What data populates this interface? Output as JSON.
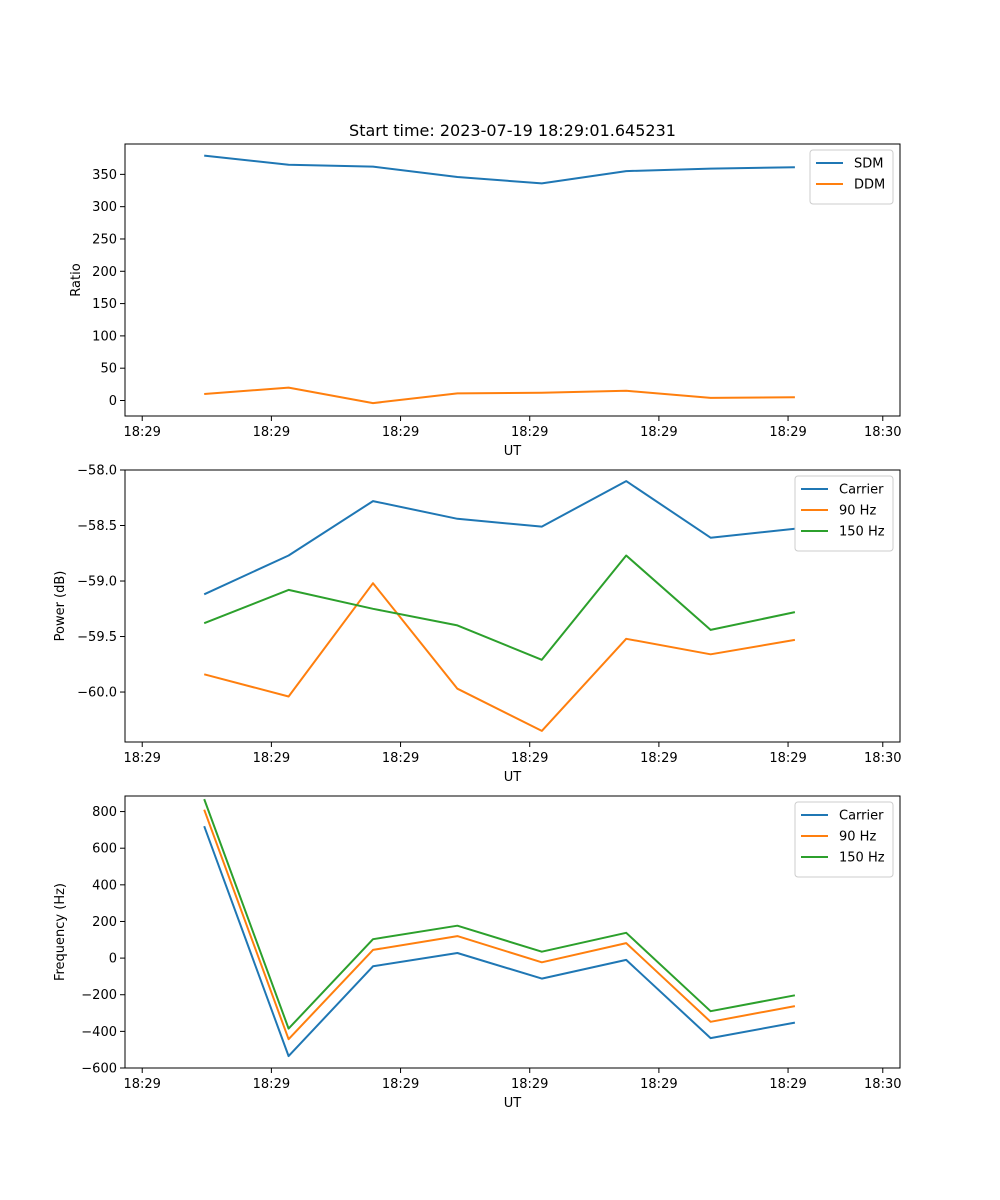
{
  "figure_title": "Start time: 2023-07-19 18:29:01.645231",
  "colors": {
    "blue": "#1f77b4",
    "orange": "#ff7f0e",
    "green": "#2ca02c"
  },
  "chart_data": [
    {
      "type": "line",
      "title": "Start time: 2023-07-19 18:29:01.645231",
      "xlabel": "UT",
      "ylabel": "Ratio",
      "xlim": [
        0,
        90
      ],
      "ylim": [
        -24,
        397
      ],
      "x_ticks": [
        2,
        17,
        32,
        47,
        62,
        77,
        88
      ],
      "x_tick_labels": [
        "18:29",
        "18:29",
        "18:29",
        "18:29",
        "18:29",
        "18:29",
        "18:30"
      ],
      "y_ticks": [
        0,
        50,
        100,
        150,
        200,
        250,
        300,
        350
      ],
      "y_tick_labels": [
        "0",
        "50",
        "100",
        "150",
        "200",
        "250",
        "300",
        "350"
      ],
      "legend_position": "top-right",
      "series": [
        {
          "name": "SDM",
          "color": "#1f77b4",
          "x": [
            9.2,
            19,
            28.8,
            38.6,
            48.4,
            58.2,
            68,
            77.8
          ],
          "values": [
            379,
            365,
            362,
            346,
            336,
            355,
            359,
            361
          ]
        },
        {
          "name": "DDM",
          "color": "#ff7f0e",
          "x": [
            9.2,
            19,
            28.8,
            38.6,
            48.4,
            58.2,
            68,
            77.8
          ],
          "values": [
            10,
            20,
            -4,
            11,
            12,
            15,
            4,
            5
          ]
        }
      ]
    },
    {
      "type": "line",
      "title": "",
      "xlabel": "UT",
      "ylabel": "Power (dB)",
      "xlim": [
        0,
        90
      ],
      "ylim": [
        -60.45,
        -58.0
      ],
      "x_ticks": [
        2,
        17,
        32,
        47,
        62,
        77,
        88
      ],
      "x_tick_labels": [
        "18:29",
        "18:29",
        "18:29",
        "18:29",
        "18:29",
        "18:29",
        "18:30"
      ],
      "y_ticks": [
        -58.0,
        -58.5,
        -59.0,
        -59.5,
        -60.0
      ],
      "y_tick_labels": [
        "−58.0",
        "−58.5",
        "−59.0",
        "−59.5",
        "−60.0"
      ],
      "legend_position": "top-right",
      "series": [
        {
          "name": "Carrier",
          "color": "#1f77b4",
          "x": [
            9.2,
            19,
            28.8,
            38.6,
            48.4,
            58.2,
            68,
            77.8
          ],
          "values": [
            -59.12,
            -58.77,
            -58.28,
            -58.44,
            -58.51,
            -58.1,
            -58.61,
            -58.53
          ]
        },
        {
          "name": "90 Hz",
          "color": "#ff7f0e",
          "x": [
            9.2,
            19,
            28.8,
            38.6,
            48.4,
            58.2,
            68,
            77.8
          ],
          "values": [
            -59.84,
            -60.04,
            -59.02,
            -59.97,
            -60.35,
            -59.52,
            -59.66,
            -59.53
          ]
        },
        {
          "name": "150 Hz",
          "color": "#2ca02c",
          "x": [
            9.2,
            19,
            28.8,
            38.6,
            48.4,
            58.2,
            68,
            77.8
          ],
          "values": [
            -59.38,
            -59.08,
            -59.25,
            -59.4,
            -59.71,
            -58.77,
            -59.44,
            -59.28
          ]
        }
      ]
    },
    {
      "type": "line",
      "title": "",
      "xlabel": "UT",
      "ylabel": "Frequency (Hz)",
      "xlim": [
        0,
        90
      ],
      "ylim": [
        -600,
        885
      ],
      "x_ticks": [
        2,
        17,
        32,
        47,
        62,
        77,
        88
      ],
      "x_tick_labels": [
        "18:29",
        "18:29",
        "18:29",
        "18:29",
        "18:29",
        "18:29",
        "18:30"
      ],
      "y_ticks": [
        -600,
        -400,
        -200,
        0,
        200,
        400,
        600,
        800
      ],
      "y_tick_labels": [
        "−600",
        "−400",
        "−200",
        "0",
        "200",
        "400",
        "600",
        "800"
      ],
      "legend_position": "top-right",
      "series": [
        {
          "name": "Carrier",
          "color": "#1f77b4",
          "x": [
            9.2,
            19,
            28.8,
            38.6,
            48.4,
            58.2,
            68,
            77.8
          ],
          "values": [
            720,
            -535,
            -45,
            28,
            -112,
            -10,
            -437,
            -352
          ]
        },
        {
          "name": "90 Hz",
          "color": "#ff7f0e",
          "x": [
            9.2,
            19,
            28.8,
            38.6,
            48.4,
            58.2,
            68,
            77.8
          ],
          "values": [
            810,
            -443,
            45,
            120,
            -23,
            82,
            -348,
            -262
          ]
        },
        {
          "name": "150 Hz",
          "color": "#2ca02c",
          "x": [
            9.2,
            19,
            28.8,
            38.6,
            48.4,
            58.2,
            68,
            77.8
          ],
          "values": [
            868,
            -385,
            103,
            177,
            35,
            138,
            -290,
            -203
          ]
        }
      ]
    }
  ]
}
